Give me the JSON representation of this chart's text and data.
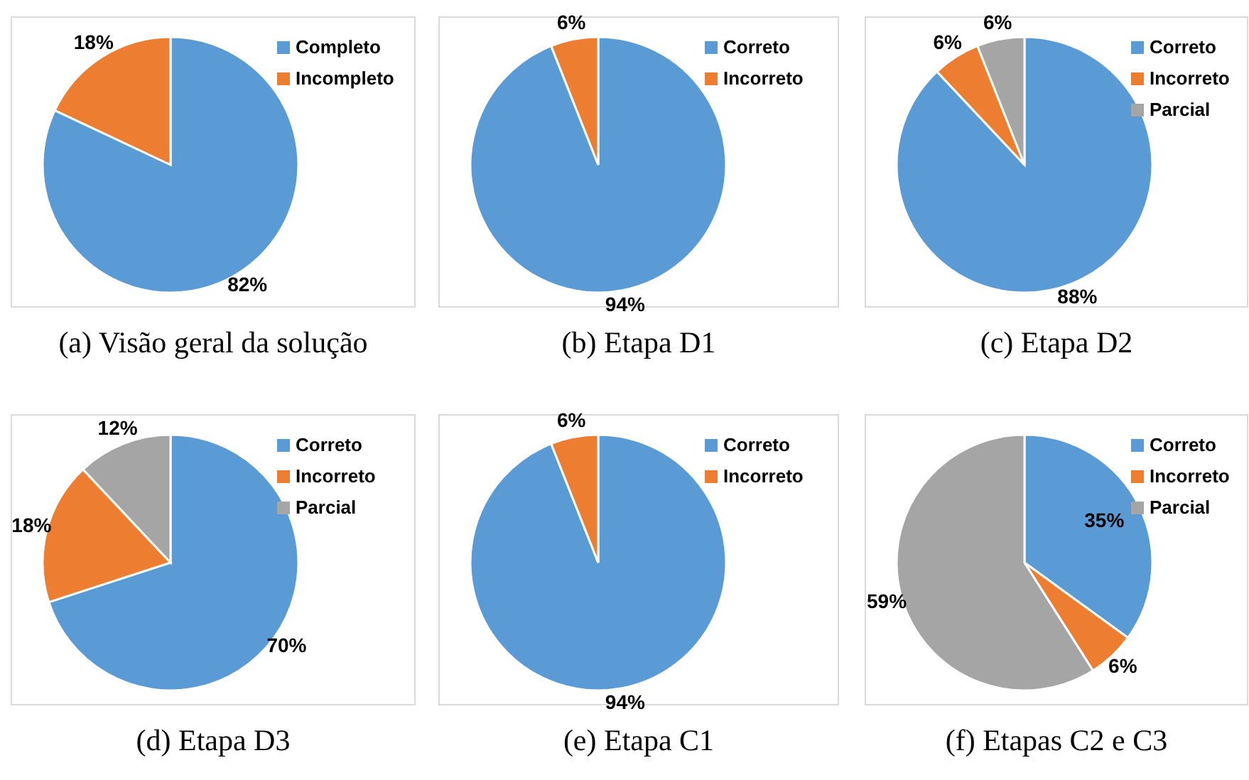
{
  "chart_data": [
    {
      "type": "pie",
      "title": "(a) Visão geral da solução",
      "categories": [
        "Completo",
        "Incompleto"
      ],
      "values": [
        82,
        18
      ],
      "value_labels": [
        "82%",
        "18%"
      ],
      "colors": [
        "#5b9bd5",
        "#ed7d31"
      ],
      "legend": "top right"
    },
    {
      "type": "pie",
      "title": "(b) Etapa D1",
      "categories": [
        "Correto",
        "Incorreto"
      ],
      "values": [
        94,
        6
      ],
      "value_labels": [
        "94%",
        "6%"
      ],
      "colors": [
        "#5b9bd5",
        "#ed7d31"
      ],
      "legend": "top right"
    },
    {
      "type": "pie",
      "title": "(c) Etapa D2",
      "categories": [
        "Correto",
        "Incorreto",
        "Parcial"
      ],
      "values": [
        88,
        6,
        6
      ],
      "value_labels": [
        "88%",
        "6%",
        "6%"
      ],
      "colors": [
        "#5b9bd5",
        "#ed7d31",
        "#a5a5a5"
      ],
      "legend": "top right"
    },
    {
      "type": "pie",
      "title": "(d) Etapa D3",
      "categories": [
        "Correto",
        "Incorreto",
        "Parcial"
      ],
      "values": [
        70,
        18,
        12
      ],
      "value_labels": [
        "70%",
        "18%",
        "12%"
      ],
      "colors": [
        "#5b9bd5",
        "#ed7d31",
        "#a5a5a5"
      ],
      "legend": "top right"
    },
    {
      "type": "pie",
      "title": "(e) Etapa C1",
      "categories": [
        "Correto",
        "Incorreto"
      ],
      "values": [
        94,
        6
      ],
      "value_labels": [
        "94%",
        "6%"
      ],
      "colors": [
        "#5b9bd5",
        "#ed7d31"
      ],
      "legend": "top right"
    },
    {
      "type": "pie",
      "title": "(f) Etapas C2 e C3",
      "categories": [
        "Correto",
        "Incorreto",
        "Parcial"
      ],
      "values": [
        35,
        6,
        59
      ],
      "value_labels": [
        "35%",
        "6%",
        "59%"
      ],
      "colors": [
        "#5b9bd5",
        "#ed7d31",
        "#a5a5a5"
      ],
      "legend": "top right"
    }
  ]
}
